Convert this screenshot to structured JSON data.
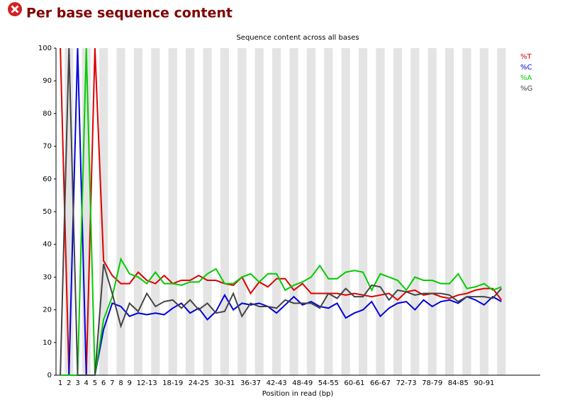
{
  "header": {
    "title": "Per base sequence content"
  },
  "chart_data": {
    "type": "line",
    "title": "Sequence content across all bases",
    "xlabel": "Position in read (bp)",
    "categories": [
      "1",
      "2",
      "3",
      "4",
      "5",
      "6",
      "7",
      "8",
      "9",
      null,
      "12-13",
      null,
      null,
      "18-19",
      null,
      null,
      "24-25",
      null,
      null,
      "30-31",
      null,
      null,
      "36-37",
      null,
      null,
      "42-43",
      null,
      null,
      "48-49",
      null,
      null,
      "54-55",
      null,
      null,
      "60-61",
      null,
      null,
      "66-67",
      null,
      null,
      "72-73",
      null,
      null,
      "78-79",
      null,
      null,
      "84-85",
      null,
      null,
      "90-91",
      null,
      null
    ],
    "series": [
      {
        "name": "%T",
        "color": "#dd0000",
        "values": [
          100,
          0,
          0,
          0,
          100,
          35,
          30.5,
          28,
          28,
          31.5,
          29,
          28,
          30.5,
          28,
          29,
          29,
          30.5,
          29,
          29,
          28,
          27.5,
          30,
          25,
          28.5,
          27,
          29.5,
          29.5,
          26,
          28,
          25,
          25,
          25,
          25,
          24.5,
          25,
          24.5,
          24,
          24.5,
          25,
          23,
          25.5,
          26,
          24.5,
          25,
          24,
          23.5,
          24.5,
          25,
          26,
          26.5,
          26.5,
          23
        ]
      },
      {
        "name": "%C",
        "color": "#0000dd",
        "values": [
          0,
          0,
          100,
          0,
          0,
          14,
          22,
          21,
          18,
          19,
          18.5,
          19,
          18.5,
          20.5,
          22,
          19,
          20.5,
          17,
          19.5,
          24.5,
          20,
          22,
          21.5,
          22,
          21,
          19,
          21.5,
          24,
          21.5,
          22.5,
          21,
          20.5,
          22,
          17.5,
          19,
          20,
          22.5,
          18,
          20.5,
          22,
          22.5,
          20,
          23,
          21,
          22.5,
          23,
          22,
          24,
          23,
          21.5,
          24,
          22.5
        ]
      },
      {
        "name": "%A",
        "color": "#00cc00",
        "values": [
          0,
          0,
          0,
          100,
          0,
          17,
          24,
          35.5,
          31,
          30,
          28,
          31.5,
          28,
          28,
          27.5,
          28.5,
          28.5,
          31,
          32.5,
          28,
          28,
          30,
          31,
          28.5,
          31,
          31,
          26,
          27.5,
          28.5,
          30,
          33.5,
          29.5,
          29.5,
          31.5,
          32,
          31.5,
          26,
          31,
          30,
          29,
          26,
          30,
          29,
          29,
          28,
          28,
          31,
          26.5,
          27,
          28,
          26,
          27
        ]
      },
      {
        "name": "%G",
        "color": "#444444",
        "values": [
          0,
          100,
          0,
          0,
          0,
          34,
          25,
          15,
          22,
          19.5,
          25,
          21,
          22.5,
          23,
          20.5,
          23,
          20,
          22,
          19,
          19.5,
          25,
          18,
          22,
          21,
          21,
          20.5,
          23,
          22,
          22,
          22,
          20.5,
          25,
          23.5,
          26.5,
          24,
          24,
          27.5,
          27,
          23,
          26,
          25.5,
          24.5,
          25,
          25,
          25,
          24.5,
          22.5,
          24,
          24,
          24,
          23.5,
          26.5
        ]
      }
    ],
    "ylim": [
      0,
      100
    ],
    "yticks": [
      0,
      10,
      20,
      30,
      40,
      50,
      60,
      70,
      80,
      90,
      100
    ],
    "stripes": true,
    "legend": "top-right"
  }
}
